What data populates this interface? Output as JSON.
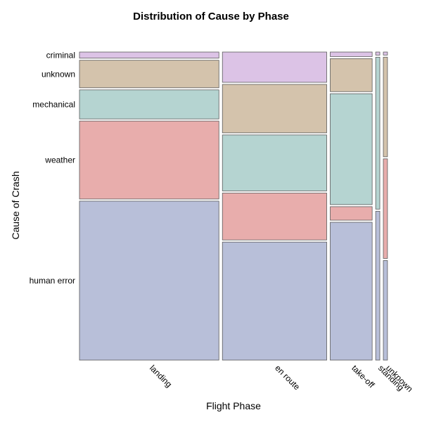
{
  "chart_data": {
    "type": "mosaic",
    "title": "Distribution of Cause by Phase",
    "xlabel": "Flight Phase",
    "ylabel": "Cause of Crash",
    "categories": [
      "landing",
      "en route",
      "take-off",
      "standing",
      "unknown"
    ],
    "phase_share": [
      0.472,
      0.353,
      0.142,
      0.014,
      0.014
    ],
    "causes": [
      "human error",
      "weather",
      "mechanical",
      "unknown",
      "criminal"
    ],
    "stack_order": [
      "human error",
      "weather",
      "mechanical",
      "unknown",
      "criminal"
    ],
    "cause_labels": [
      "criminal",
      "unknown",
      "mechanical",
      "weather",
      "human error"
    ],
    "cause_colors": {
      "human error": "#b8bfd9",
      "weather": "#e8adac",
      "mechanical": "#b5d4d1",
      "unknown": "#d4c3ac",
      "criminal": "#dcc3e6"
    },
    "series": [
      {
        "name": "human error",
        "values": [
          0.52,
          0.39,
          0.46,
          0.49,
          0.33
        ]
      },
      {
        "name": "weather",
        "values": [
          0.255,
          0.155,
          0.045,
          0.0,
          0.33
        ]
      },
      {
        "name": "mechanical",
        "values": [
          0.095,
          0.185,
          0.37,
          0.5,
          0.0
        ]
      },
      {
        "name": "unknown",
        "values": [
          0.09,
          0.16,
          0.11,
          0.0,
          0.33
        ]
      },
      {
        "name": "criminal",
        "values": [
          0.02,
          0.1,
          0.015,
          0.01,
          0.01
        ]
      }
    ]
  }
}
